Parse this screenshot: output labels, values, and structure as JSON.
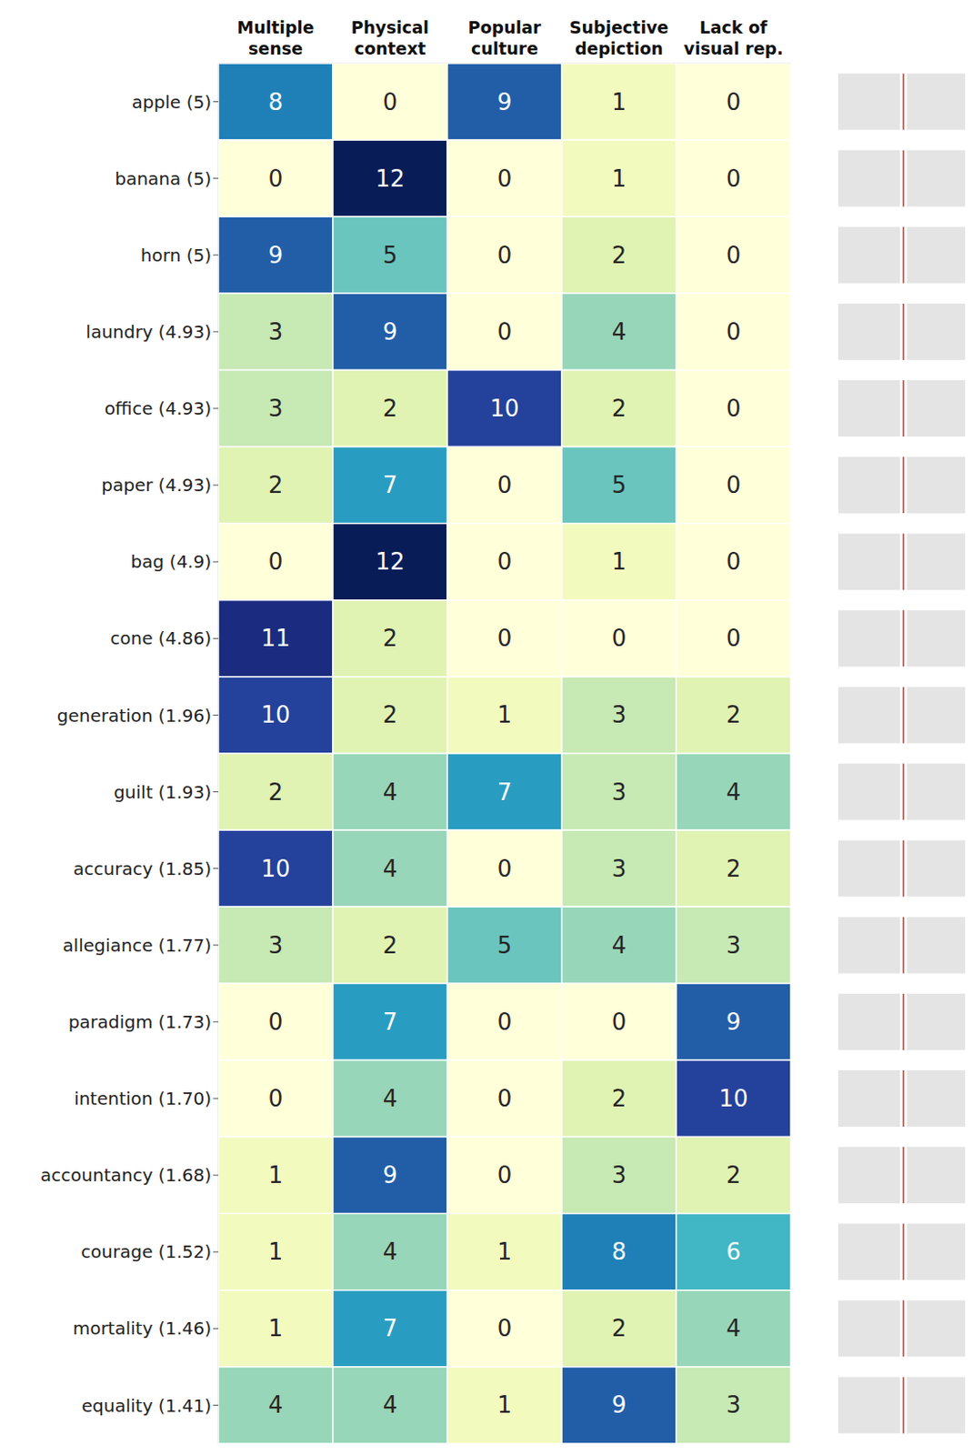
{
  "chart_data": {
    "type": "heatmap",
    "columns": [
      "Multiple sense",
      "Physical context",
      "Popular culture",
      "Subjective depiction",
      "Lack of visual rep."
    ],
    "rows": [
      "apple (5)",
      "banana (5)",
      "horn (5)",
      "laundry (4.93)",
      "office (4.93)",
      "paper (4.93)",
      "bag (4.9)",
      "cone (4.86)",
      "generation (1.96)",
      "guilt (1.93)",
      "accuracy (1.85)",
      "allegiance (1.77)",
      "paradigm (1.73)",
      "intention (1.70)",
      "accountancy (1.68)",
      "courage (1.52)",
      "mortality (1.46)",
      "equality (1.41)"
    ],
    "cells": [
      [
        8,
        0,
        9,
        1,
        0
      ],
      [
        0,
        12,
        0,
        1,
        0
      ],
      [
        9,
        5,
        0,
        2,
        0
      ],
      [
        3,
        9,
        0,
        4,
        0
      ],
      [
        3,
        2,
        10,
        2,
        0
      ],
      [
        2,
        7,
        0,
        5,
        0
      ],
      [
        0,
        12,
        0,
        1,
        0
      ],
      [
        11,
        2,
        0,
        0,
        0
      ],
      [
        10,
        2,
        1,
        3,
        2
      ],
      [
        2,
        4,
        7,
        3,
        4
      ],
      [
        10,
        4,
        0,
        3,
        2
      ],
      [
        3,
        2,
        5,
        4,
        3
      ],
      [
        0,
        7,
        0,
        0,
        9
      ],
      [
        0,
        4,
        0,
        2,
        10
      ],
      [
        1,
        9,
        0,
        3,
        2
      ],
      [
        1,
        4,
        1,
        8,
        6
      ],
      [
        1,
        7,
        0,
        2,
        4
      ],
      [
        4,
        4,
        1,
        9,
        3
      ]
    ],
    "color_range": [
      0,
      12
    ],
    "data_labels": true
  }
}
